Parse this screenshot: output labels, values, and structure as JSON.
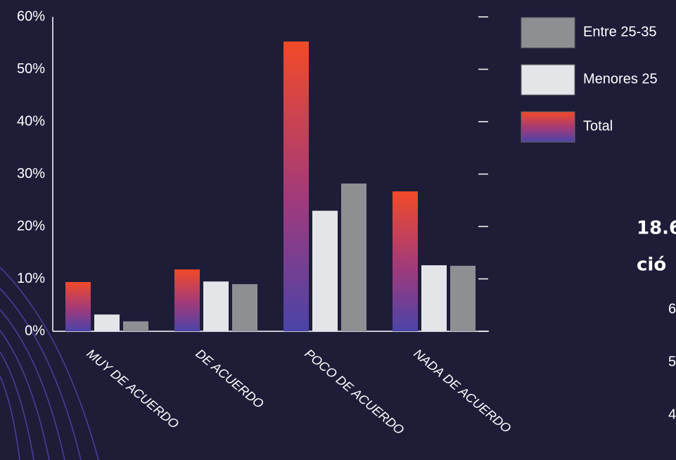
{
  "chart_data": {
    "type": "bar",
    "categories": [
      "MUY DE ACUERDO",
      "DE ACUERDO",
      "POCO DE ACUERDO",
      "NADA DE ACUERDO"
    ],
    "series": [
      {
        "name": "Total",
        "color": "#f24a28",
        "values": [
          9.4,
          11.8,
          55.3,
          26.7
        ]
      },
      {
        "name": "Menores 25",
        "color": "#e4e5e8",
        "values": [
          3.2,
          9.5,
          23,
          12.6
        ]
      },
      {
        "name": "Entre 25-35",
        "color": "#8e8f93",
        "values": [
          1.9,
          9,
          28.2,
          12.5
        ]
      }
    ],
    "ylim": [
      0,
      60
    ],
    "yticks": [
      {
        "value": 0,
        "label": "0%"
      },
      {
        "value": 10,
        "label": "10%"
      },
      {
        "value": 20,
        "label": "20%"
      },
      {
        "value": 30,
        "label": "30%"
      },
      {
        "value": 40,
        "label": "40%"
      },
      {
        "value": 50,
        "label": "50%"
      },
      {
        "value": 60,
        "label": "60%"
      }
    ],
    "grid": false
  },
  "cropped_texts": [
    "18.6",
    "ció",
    "6",
    "5",
    "4"
  ]
}
